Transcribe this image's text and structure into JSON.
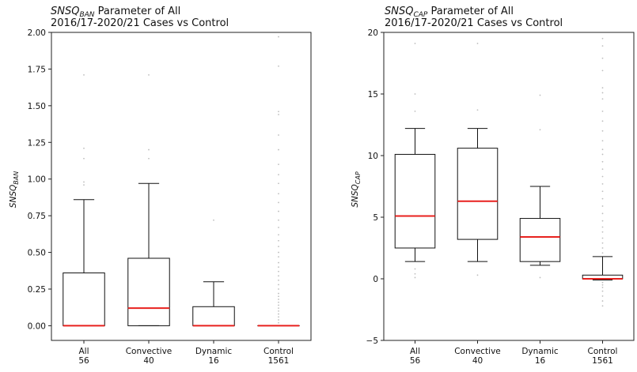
{
  "colors": {
    "median": "#e8211e",
    "flier": "#b8b8b8",
    "frame": "#222222"
  },
  "chart_data": [
    {
      "type": "box",
      "title_var": "SNSQ",
      "title_sub": "BAN",
      "title_rest": " Parameter of All",
      "title_line2": "2016/17-2020/21 Cases vs Control",
      "ylabel_var": "SNSQ",
      "ylabel_sub": "BAN",
      "ylim": [
        -0.1,
        2.0
      ],
      "yticks": [
        "0.00",
        "0.25",
        "0.50",
        "0.75",
        "1.00",
        "1.25",
        "1.50",
        "1.75",
        "2.00"
      ],
      "ytick_values": [
        0,
        0.25,
        0.5,
        0.75,
        1.0,
        1.25,
        1.5,
        1.75,
        2.0
      ],
      "categories": [
        {
          "name": "All",
          "count": "56"
        },
        {
          "name": "Convective",
          "count": "40"
        },
        {
          "name": "Dynamic",
          "count": "16"
        },
        {
          "name": "Control",
          "count": "1561"
        }
      ],
      "boxes": [
        {
          "whislo": 0,
          "q1": 0,
          "med": 0,
          "q3": 0.36,
          "whishi": 0.86,
          "fliers": [
            0.96,
            0.98,
            1.14,
            1.21,
            1.71
          ]
        },
        {
          "whislo": 0,
          "q1": 0,
          "med": 0.12,
          "q3": 0.46,
          "whishi": 0.97,
          "fliers": [
            1.14,
            1.2,
            1.71
          ]
        },
        {
          "whislo": 0,
          "q1": 0,
          "med": 0,
          "q3": 0.13,
          "whishi": 0.3,
          "fliers": [
            0.72
          ]
        },
        {
          "whislo": 0,
          "q1": 0,
          "med": 0,
          "q3": 0,
          "whishi": 0,
          "fliers": [
            0.02,
            0.04,
            0.06,
            0.08,
            0.1,
            0.12,
            0.14,
            0.16,
            0.18,
            0.2,
            0.22,
            0.25,
            0.28,
            0.31,
            0.34,
            0.37,
            0.4,
            0.43,
            0.47,
            0.5,
            0.54,
            0.58,
            0.62,
            0.67,
            0.72,
            0.78,
            0.84,
            0.9,
            0.97,
            1.03,
            1.1,
            1.2,
            1.3,
            1.44,
            1.46,
            1.77,
            1.97
          ]
        }
      ]
    },
    {
      "type": "box",
      "title_var": "SNSQ",
      "title_sub": "CAP",
      "title_rest": " Parameter of All",
      "title_line2": "2016/17-2020/21 Cases vs Control",
      "ylabel_var": "SNSQ",
      "ylabel_sub": "CAP",
      "ylim": [
        -5,
        20
      ],
      "yticks": [
        "−5",
        "0",
        "5",
        "10",
        "15",
        "20"
      ],
      "ytick_values": [
        -5,
        0,
        5,
        10,
        15,
        20
      ],
      "categories": [
        {
          "name": "All",
          "count": "56"
        },
        {
          "name": "Convective",
          "count": "40"
        },
        {
          "name": "Dynamic",
          "count": "16"
        },
        {
          "name": "Control",
          "count": "1561"
        }
      ],
      "boxes": [
        {
          "whislo": 1.4,
          "q1": 2.5,
          "med": 5.1,
          "q3": 10.1,
          "whishi": 12.2,
          "fliers": [
            0.1,
            0.4,
            0.8,
            13.6,
            15.0,
            19.1
          ]
        },
        {
          "whislo": 1.4,
          "q1": 3.2,
          "med": 6.3,
          "q3": 10.6,
          "whishi": 12.2,
          "fliers": [
            0.3,
            13.7,
            19.1
          ]
        },
        {
          "whislo": 1.1,
          "q1": 1.4,
          "med": 3.4,
          "q3": 4.9,
          "whishi": 7.5,
          "fliers": [
            0.1,
            12.1,
            14.9
          ]
        },
        {
          "whislo": -0.1,
          "q1": 0,
          "med": 0,
          "q3": 0.3,
          "whishi": 1.8,
          "fliers": [
            -2.2,
            -1.8,
            -1.4,
            -1.0,
            -0.7,
            -0.5,
            -0.3,
            2.1,
            2.5,
            2.9,
            3.3,
            3.8,
            4.2,
            4.7,
            5.3,
            5.9,
            6.5,
            7.1,
            7.7,
            8.3,
            8.9,
            9.5,
            10.1,
            10.5,
            11.2,
            12.0,
            12.8,
            13.6,
            14.6,
            15.1,
            15.5,
            16.9,
            17.9,
            18.9,
            19.5
          ]
        }
      ]
    }
  ]
}
